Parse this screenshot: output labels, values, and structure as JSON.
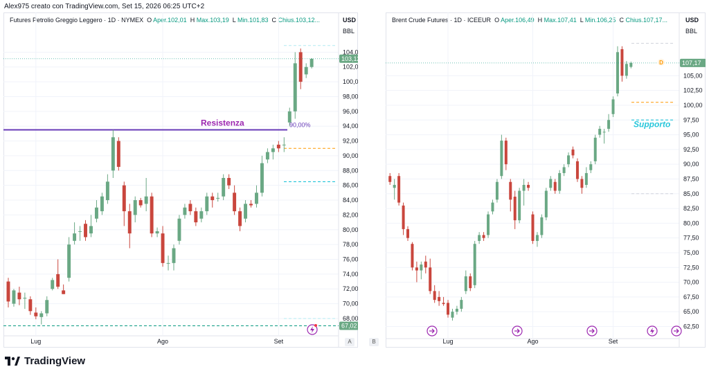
{
  "header": {
    "created_by": "Alex975 creato con TradingView.com, Set 15, 2026 06:25 UTC+2"
  },
  "brand": {
    "name": "TradingView",
    "logo_icon": "tradingview-logo-icon"
  },
  "pane_buttons": {
    "a": "A",
    "b": "B"
  },
  "charts": [
    {
      "legend": {
        "symbol": "Futures Petrolio Greggio Leggero · 1D · NYMEX",
        "o_label": "O",
        "o_val": "Aper.102,01",
        "h_label": "H",
        "h_val": "Max.103,19",
        "l_label": "L",
        "l_val": "Min.101,83",
        "c_label": "C",
        "c_val": "Chius.103,12..."
      },
      "currency": "USD",
      "unit": "BBL",
      "price_badge": "103,12",
      "low_badge": "67,02",
      "annotation": "Resistenza",
      "fib_label": "90,00%",
      "x_ticks": [
        "Lug",
        "Ago",
        "Set"
      ]
    },
    {
      "legend": {
        "symbol": "Brent Crude Futures · 1D · ICEEUR",
        "o_label": "O",
        "o_val": "Aper.106,49",
        "h_label": "H",
        "h_val": "Max.107,41",
        "l_label": "L",
        "l_val": "Min.106,25",
        "c_label": "C",
        "c_val": "Chius.107,17..."
      },
      "currency": "USD",
      "unit": "BBL",
      "price_badge": "107,17",
      "dividend_marker": "D",
      "annotation": "Supporto",
      "x_ticks": [
        "Lug",
        "Ago",
        "Set"
      ]
    }
  ],
  "chart_data": [
    {
      "type": "candlestick",
      "title": "Futures Petrolio Greggio Leggero · 1D · NYMEX",
      "ylabel": "USD BBL",
      "ylim": [
        66.5,
        106
      ],
      "y_ticks": [
        68,
        70,
        72,
        74,
        76,
        78,
        80,
        82,
        84,
        86,
        88,
        90,
        92,
        94,
        96,
        98,
        100,
        102,
        104
      ],
      "y_tick_labels": [
        "68,00",
        "70,00",
        "72,00",
        "74,00",
        "76,00",
        "78,00",
        "80,00",
        "82,00",
        "84,00",
        "86,00",
        "88,00",
        "90,00",
        "92,00",
        "94,00",
        "96,00",
        "98,00",
        "100,00",
        "102,00",
        "104,00"
      ],
      "x_ticks": [
        "Lug",
        "Ago",
        "Set"
      ],
      "x_tick_index": [
        5,
        28,
        49
      ],
      "n_slots": 60,
      "candles": [
        {
          "i": 0,
          "o": 73.0,
          "h": 73.5,
          "l": 69.5,
          "c": 70.3
        },
        {
          "i": 1,
          "o": 70.0,
          "h": 72.0,
          "l": 69.6,
          "c": 71.8
        },
        {
          "i": 2,
          "o": 71.5,
          "h": 72.3,
          "l": 69.8,
          "c": 70.6
        },
        {
          "i": 3,
          "o": 70.7,
          "h": 71.5,
          "l": 69.3,
          "c": 70.8
        },
        {
          "i": 4,
          "o": 70.6,
          "h": 71.0,
          "l": 68.5,
          "c": 69.0
        },
        {
          "i": 5,
          "o": 68.8,
          "h": 69.5,
          "l": 67.9,
          "c": 68.3
        },
        {
          "i": 6,
          "o": 68.2,
          "h": 69.0,
          "l": 67.2,
          "c": 68.7
        },
        {
          "i": 7,
          "o": 68.7,
          "h": 71.0,
          "l": 68.3,
          "c": 70.5
        },
        {
          "i": 8,
          "o": 72.0,
          "h": 73.5,
          "l": 71.8,
          "c": 73.2
        },
        {
          "i": 9,
          "o": 74.0,
          "h": 76.0,
          "l": 72.0,
          "c": 72.3
        },
        {
          "i": 10,
          "o": 71.8,
          "h": 72.6,
          "l": 71.3,
          "c": 71.3
        },
        {
          "i": 11,
          "o": 73.5,
          "h": 79.0,
          "l": 73.0,
          "c": 78.0
        },
        {
          "i": 12,
          "o": 78.5,
          "h": 81.0,
          "l": 78.0,
          "c": 79.5
        },
        {
          "i": 13,
          "o": 79.8,
          "h": 80.5,
          "l": 78.5,
          "c": 79.8
        },
        {
          "i": 14,
          "o": 80.8,
          "h": 81.3,
          "l": 78.5,
          "c": 79.0
        },
        {
          "i": 15,
          "o": 79.5,
          "h": 82.0,
          "l": 79.0,
          "c": 80.5
        },
        {
          "i": 16,
          "o": 81.5,
          "h": 84.0,
          "l": 81.0,
          "c": 83.0
        },
        {
          "i": 17,
          "o": 82.5,
          "h": 85.0,
          "l": 82.0,
          "c": 84.5
        },
        {
          "i": 18,
          "o": 84.0,
          "h": 87.5,
          "l": 83.5,
          "c": 86.5
        },
        {
          "i": 19,
          "o": 88.0,
          "h": 93.5,
          "l": 87.0,
          "c": 92.5
        },
        {
          "i": 20,
          "o": 92.0,
          "h": 92.5,
          "l": 88.0,
          "c": 88.5
        },
        {
          "i": 21,
          "o": 86.0,
          "h": 86.5,
          "l": 80.5,
          "c": 82.5
        },
        {
          "i": 22,
          "o": 82.5,
          "h": 83.5,
          "l": 77.5,
          "c": 79.5
        },
        {
          "i": 23,
          "o": 82.0,
          "h": 84.5,
          "l": 81.0,
          "c": 84.0
        },
        {
          "i": 24,
          "o": 84.0,
          "h": 84.3,
          "l": 83.0,
          "c": 83.3
        },
        {
          "i": 25,
          "o": 83.5,
          "h": 87.0,
          "l": 82.5,
          "c": 84.5
        },
        {
          "i": 26,
          "o": 84.5,
          "h": 85.0,
          "l": 79.0,
          "c": 79.5
        },
        {
          "i": 27,
          "o": 79.5,
          "h": 80.3,
          "l": 79.0,
          "c": 79.8
        },
        {
          "i": 28,
          "o": 79.5,
          "h": 80.5,
          "l": 75.0,
          "c": 75.5
        },
        {
          "i": 29,
          "o": 75.5,
          "h": 76.5,
          "l": 74.5,
          "c": 75.5
        },
        {
          "i": 30,
          "o": 75.5,
          "h": 78.0,
          "l": 74.5,
          "c": 77.5
        },
        {
          "i": 31,
          "o": 78.5,
          "h": 82.0,
          "l": 78.0,
          "c": 81.5
        },
        {
          "i": 32,
          "o": 82.0,
          "h": 83.5,
          "l": 81.5,
          "c": 83.0
        },
        {
          "i": 33,
          "o": 83.5,
          "h": 84.0,
          "l": 82.0,
          "c": 82.5
        },
        {
          "i": 34,
          "o": 82.5,
          "h": 83.0,
          "l": 80.5,
          "c": 81.0
        },
        {
          "i": 35,
          "o": 81.5,
          "h": 83.0,
          "l": 81.0,
          "c": 82.5
        },
        {
          "i": 36,
          "o": 82.5,
          "h": 85.0,
          "l": 82.0,
          "c": 84.5
        },
        {
          "i": 37,
          "o": 84.5,
          "h": 85.0,
          "l": 83.0,
          "c": 84.0
        },
        {
          "i": 38,
          "o": 84.2,
          "h": 85.0,
          "l": 83.8,
          "c": 84.3
        },
        {
          "i": 39,
          "o": 84.5,
          "h": 87.5,
          "l": 84.0,
          "c": 87.0
        },
        {
          "i": 40,
          "o": 87.0,
          "h": 87.5,
          "l": 85.5,
          "c": 86.0
        },
        {
          "i": 41,
          "o": 85.0,
          "h": 86.0,
          "l": 82.0,
          "c": 82.5
        },
        {
          "i": 42,
          "o": 82.5,
          "h": 83.0,
          "l": 79.8,
          "c": 80.5
        },
        {
          "i": 43,
          "o": 81.5,
          "h": 84.0,
          "l": 81.0,
          "c": 83.5
        },
        {
          "i": 44,
          "o": 83.5,
          "h": 84.0,
          "l": 83.0,
          "c": 83.3
        },
        {
          "i": 45,
          "o": 83.5,
          "h": 86.0,
          "l": 83.0,
          "c": 85.0
        },
        {
          "i": 46,
          "o": 85.0,
          "h": 90.0,
          "l": 84.5,
          "c": 89.0
        },
        {
          "i": 47,
          "o": 89.5,
          "h": 91.0,
          "l": 89.0,
          "c": 90.5
        },
        {
          "i": 48,
          "o": 90.5,
          "h": 91.5,
          "l": 89.5,
          "c": 91.0
        },
        {
          "i": 49,
          "o": 91.5,
          "h": 92.0,
          "l": 90.5,
          "c": 91.0
        },
        {
          "i": 50,
          "o": 91.5,
          "h": 92.5,
          "l": 90.5,
          "c": 91.5
        },
        {
          "i": 51,
          "o": 94.5,
          "h": 96.5,
          "l": 94.0,
          "c": 96.0
        },
        {
          "i": 52,
          "o": 96.0,
          "h": 104.0,
          "l": 95.0,
          "c": 102.5
        },
        {
          "i": 53,
          "o": 104.0,
          "h": 104.5,
          "l": 99.0,
          "c": 100.0
        },
        {
          "i": 54,
          "o": 101.0,
          "h": 102.5,
          "l": 100.5,
          "c": 102.0
        },
        {
          "i": 55,
          "o": 102.0,
          "h": 103.2,
          "l": 101.8,
          "c": 103.1
        }
      ],
      "levels": [
        {
          "name": "resistenza",
          "value": 93.5,
          "color": "#673ab7",
          "style": "solid"
        },
        {
          "name": "fib-orange",
          "value": 91.0,
          "color": "#ff9800",
          "style": "dashed"
        },
        {
          "name": "fib-cyan-mid",
          "value": 86.5,
          "color": "#00bcd4",
          "style": "dashed"
        },
        {
          "name": "fib-cyan-high",
          "value": 104.9,
          "color": "#b2ebf2",
          "style": "dashed"
        },
        {
          "name": "fib-cyan-low",
          "value": 68.0,
          "color": "#b2ebf2",
          "style": "dashed"
        },
        {
          "name": "fib-green",
          "value": 67.02,
          "color": "#089981",
          "style": "dashed"
        }
      ],
      "last_price": 103.12,
      "low_price": 67.02,
      "colors": {
        "up": "#6aa884",
        "down": "#c9463d",
        "line": "#673ab7",
        "label_annotation": "#9c27b0"
      }
    },
    {
      "type": "candlestick",
      "title": "Brent Crude Futures · 1D · ICEEUR",
      "ylabel": "USD BBL",
      "ylim": [
        61.5,
        111.5
      ],
      "y_ticks": [
        62.5,
        65,
        67.5,
        70,
        72.5,
        75,
        77.5,
        80,
        82.5,
        85,
        87.5,
        90,
        92.5,
        95,
        97.5,
        100,
        102.5,
        105
      ],
      "y_tick_labels": [
        "62,50",
        "65,00",
        "67,50",
        "70,00",
        "72,50",
        "75,00",
        "77,50",
        "80,00",
        "82,50",
        "85,00",
        "87,50",
        "90,00",
        "92,50",
        "95,00",
        "97,50",
        "100,00",
        "102,50",
        "105,00"
      ],
      "x_ticks": [
        "Lug",
        "Ago",
        "Set"
      ],
      "x_tick_index": [
        13,
        32,
        50
      ],
      "n_slots": 65,
      "candles": [
        {
          "i": 0,
          "o": 88.0,
          "h": 88.5,
          "l": 86.5,
          "c": 87.0
        },
        {
          "i": 1,
          "o": 86.0,
          "h": 87.5,
          "l": 84.0,
          "c": 86.5
        },
        {
          "i": 2,
          "o": 88.0,
          "h": 88.5,
          "l": 83.0,
          "c": 83.5
        },
        {
          "i": 3,
          "o": 83.0,
          "h": 83.5,
          "l": 78.0,
          "c": 79.0
        },
        {
          "i": 4,
          "o": 79.0,
          "h": 79.5,
          "l": 77.0,
          "c": 77.5
        },
        {
          "i": 5,
          "o": 76.5,
          "h": 76.8,
          "l": 72.0,
          "c": 72.5
        },
        {
          "i": 6,
          "o": 72.5,
          "h": 73.5,
          "l": 70.0,
          "c": 72.0
        },
        {
          "i": 7,
          "o": 72.0,
          "h": 73.5,
          "l": 70.5,
          "c": 73.0
        },
        {
          "i": 8,
          "o": 73.5,
          "h": 74.5,
          "l": 71.5,
          "c": 72.5
        },
        {
          "i": 9,
          "o": 72.5,
          "h": 74.0,
          "l": 68.0,
          "c": 68.5
        },
        {
          "i": 10,
          "o": 68.5,
          "h": 69.5,
          "l": 66.5,
          "c": 67.0
        },
        {
          "i": 11,
          "o": 67.5,
          "h": 68.5,
          "l": 66.0,
          "c": 66.8
        },
        {
          "i": 12,
          "o": 66.5,
          "h": 67.5,
          "l": 66.0,
          "c": 66.3
        },
        {
          "i": 13,
          "o": 66.5,
          "h": 67.0,
          "l": 64.0,
          "c": 64.5
        },
        {
          "i": 14,
          "o": 64.0,
          "h": 65.5,
          "l": 63.5,
          "c": 65.0
        },
        {
          "i": 15,
          "o": 65.0,
          "h": 66.0,
          "l": 64.5,
          "c": 65.5
        },
        {
          "i": 16,
          "o": 65.5,
          "h": 67.5,
          "l": 65.0,
          "c": 67.0
        },
        {
          "i": 17,
          "o": 68.5,
          "h": 72.0,
          "l": 68.0,
          "c": 71.0
        },
        {
          "i": 18,
          "o": 71.0,
          "h": 71.5,
          "l": 68.5,
          "c": 69.0
        },
        {
          "i": 19,
          "o": 69.5,
          "h": 77.0,
          "l": 69.0,
          "c": 76.5
        },
        {
          "i": 20,
          "o": 77.0,
          "h": 78.5,
          "l": 76.5,
          "c": 78.0
        },
        {
          "i": 21,
          "o": 78.0,
          "h": 78.5,
          "l": 77.0,
          "c": 77.5
        },
        {
          "i": 22,
          "o": 78.0,
          "h": 82.0,
          "l": 77.5,
          "c": 81.5
        },
        {
          "i": 23,
          "o": 82.0,
          "h": 84.0,
          "l": 81.5,
          "c": 83.5
        },
        {
          "i": 24,
          "o": 84.0,
          "h": 87.5,
          "l": 83.5,
          "c": 87.0
        },
        {
          "i": 25,
          "o": 88.0,
          "h": 95.0,
          "l": 87.5,
          "c": 94.0
        },
        {
          "i": 26,
          "o": 94.0,
          "h": 94.5,
          "l": 89.0,
          "c": 90.0
        },
        {
          "i": 27,
          "o": 87.0,
          "h": 87.5,
          "l": 82.0,
          "c": 84.0
        },
        {
          "i": 28,
          "o": 84.5,
          "h": 85.5,
          "l": 79.0,
          "c": 80.5
        },
        {
          "i": 29,
          "o": 80.5,
          "h": 86.0,
          "l": 80.0,
          "c": 85.5
        },
        {
          "i": 30,
          "o": 85.5,
          "h": 87.5,
          "l": 83.0,
          "c": 86.5
        },
        {
          "i": 31,
          "o": 86.5,
          "h": 87.0,
          "l": 85.5,
          "c": 86.0
        },
        {
          "i": 32,
          "o": 81.5,
          "h": 82.0,
          "l": 76.5,
          "c": 77.0
        },
        {
          "i": 33,
          "o": 77.0,
          "h": 78.5,
          "l": 76.0,
          "c": 78.0
        },
        {
          "i": 34,
          "o": 78.0,
          "h": 81.5,
          "l": 77.5,
          "c": 81.0
        },
        {
          "i": 35,
          "o": 81.0,
          "h": 86.0,
          "l": 80.5,
          "c": 85.5
        },
        {
          "i": 36,
          "o": 86.0,
          "h": 88.0,
          "l": 85.5,
          "c": 87.5
        },
        {
          "i": 37,
          "o": 87.0,
          "h": 87.5,
          "l": 85.0,
          "c": 85.5
        },
        {
          "i": 38,
          "o": 85.5,
          "h": 89.0,
          "l": 85.0,
          "c": 88.5
        },
        {
          "i": 39,
          "o": 88.5,
          "h": 90.0,
          "l": 88.0,
          "c": 89.5
        },
        {
          "i": 40,
          "o": 90.0,
          "h": 92.0,
          "l": 89.5,
          "c": 91.5
        },
        {
          "i": 41,
          "o": 92.5,
          "h": 93.0,
          "l": 91.0,
          "c": 91.5
        },
        {
          "i": 42,
          "o": 90.5,
          "h": 91.0,
          "l": 87.0,
          "c": 87.5
        },
        {
          "i": 43,
          "o": 87.5,
          "h": 88.0,
          "l": 85.0,
          "c": 86.0
        },
        {
          "i": 44,
          "o": 86.5,
          "h": 89.5,
          "l": 86.0,
          "c": 88.5
        },
        {
          "i": 45,
          "o": 89.0,
          "h": 90.5,
          "l": 88.5,
          "c": 90.0
        },
        {
          "i": 46,
          "o": 90.5,
          "h": 95.0,
          "l": 90.0,
          "c": 94.5
        },
        {
          "i": 47,
          "o": 95.0,
          "h": 96.5,
          "l": 94.5,
          "c": 96.0
        },
        {
          "i": 48,
          "o": 95.5,
          "h": 96.0,
          "l": 93.5,
          "c": 95.5
        },
        {
          "i": 49,
          "o": 96.0,
          "h": 98.5,
          "l": 95.5,
          "c": 97.5
        },
        {
          "i": 50,
          "o": 98.5,
          "h": 101.5,
          "l": 98.0,
          "c": 101.0
        },
        {
          "i": 51,
          "o": 102.0,
          "h": 110.0,
          "l": 101.5,
          "c": 109.0
        },
        {
          "i": 52,
          "o": 109.5,
          "h": 110.0,
          "l": 104.0,
          "c": 105.0
        },
        {
          "i": 53,
          "o": 105.0,
          "h": 107.5,
          "l": 104.5,
          "c": 107.0
        },
        {
          "i": 54,
          "o": 106.5,
          "h": 107.4,
          "l": 106.25,
          "c": 107.17
        }
      ],
      "levels": [
        {
          "name": "fib-orange",
          "value": 100.5,
          "color": "#ff9800",
          "style": "dashed"
        },
        {
          "name": "fib-cyan-mid",
          "value": 97.5,
          "color": "#00bcd4",
          "style": "dashed"
        },
        {
          "name": "fib-high",
          "value": 110.5,
          "color": "#d1d4dc",
          "style": "dashed"
        },
        {
          "name": "fib-low",
          "value": 85.0,
          "color": "#d1d4dc",
          "style": "dashed"
        }
      ],
      "last_price": 107.17,
      "colors": {
        "up": "#6aa884",
        "down": "#c9463d",
        "label_annotation": "#26c6da"
      }
    }
  ]
}
